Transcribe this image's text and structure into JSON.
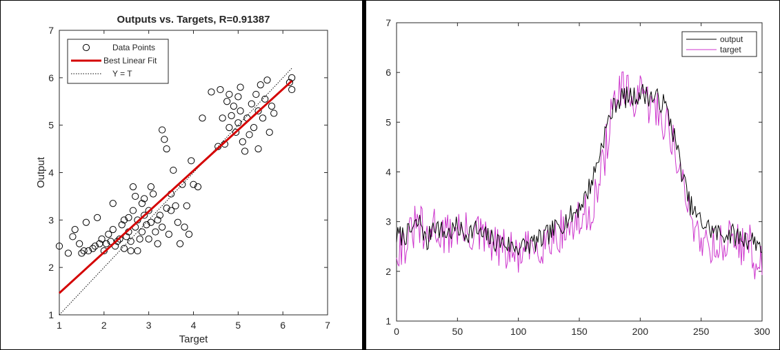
{
  "chart_data": [
    {
      "type": "scatter",
      "title": "Outputs vs. Targets, R=0.91387",
      "xlabel": "Target",
      "ylabel": "Output",
      "xlim": [
        1,
        7
      ],
      "ylim": [
        1,
        7
      ],
      "xticks": [
        "1",
        "2",
        "3",
        "4",
        "5",
        "6",
        "7"
      ],
      "yticks": [
        "1",
        "2",
        "3",
        "4",
        "5",
        "6",
        "7"
      ],
      "grid": false,
      "legend": {
        "placement": "top-left",
        "entries": [
          "Data Points",
          "Best Linear Fit",
          "Y = T"
        ]
      },
      "fit_line": {
        "slope": 0.86,
        "intercept": 0.6,
        "x_range": [
          1,
          6.2
        ]
      },
      "identity_line": {
        "x_range": [
          1,
          6.2
        ]
      },
      "points": [
        [
          1.0,
          2.45
        ],
        [
          1.2,
          2.3
        ],
        [
          1.3,
          2.65
        ],
        [
          1.35,
          2.8
        ],
        [
          1.45,
          2.5
        ],
        [
          1.5,
          2.3
        ],
        [
          1.55,
          2.35
        ],
        [
          1.6,
          2.95
        ],
        [
          1.65,
          2.35
        ],
        [
          1.75,
          2.4
        ],
        [
          1.8,
          2.45
        ],
        [
          1.85,
          3.05
        ],
        [
          1.9,
          2.5
        ],
        [
          1.95,
          2.6
        ],
        [
          2.0,
          2.35
        ],
        [
          2.05,
          2.5
        ],
        [
          2.1,
          2.7
        ],
        [
          2.15,
          2.55
        ],
        [
          2.2,
          2.8
        ],
        [
          2.2,
          3.35
        ],
        [
          2.25,
          2.45
        ],
        [
          2.3,
          2.55
        ],
        [
          2.35,
          2.6
        ],
        [
          2.4,
          2.9
        ],
        [
          2.45,
          3.0
        ],
        [
          2.45,
          2.4
        ],
        [
          2.5,
          2.65
        ],
        [
          2.55,
          2.75
        ],
        [
          2.55,
          3.05
        ],
        [
          2.6,
          2.35
        ],
        [
          2.6,
          2.55
        ],
        [
          2.65,
          3.2
        ],
        [
          2.65,
          3.7
        ],
        [
          2.7,
          2.85
        ],
        [
          2.7,
          3.5
        ],
        [
          2.75,
          3.0
        ],
        [
          2.75,
          2.35
        ],
        [
          2.8,
          2.6
        ],
        [
          2.85,
          2.75
        ],
        [
          2.85,
          3.35
        ],
        [
          2.9,
          3.45
        ],
        [
          2.9,
          3.1
        ],
        [
          2.95,
          2.9
        ],
        [
          3.0,
          2.6
        ],
        [
          3.0,
          3.2
        ],
        [
          3.05,
          3.7
        ],
        [
          3.05,
          2.95
        ],
        [
          3.1,
          3.55
        ],
        [
          3.15,
          2.75
        ],
        [
          3.2,
          3.0
        ],
        [
          3.2,
          2.5
        ],
        [
          3.25,
          3.1
        ],
        [
          3.3,
          2.85
        ],
        [
          3.3,
          4.9
        ],
        [
          3.35,
          4.7
        ],
        [
          3.4,
          4.5
        ],
        [
          3.4,
          3.25
        ],
        [
          3.45,
          2.7
        ],
        [
          3.5,
          3.55
        ],
        [
          3.5,
          3.2
        ],
        [
          3.55,
          4.05
        ],
        [
          3.6,
          3.3
        ],
        [
          3.65,
          2.95
        ],
        [
          3.7,
          2.5
        ],
        [
          3.75,
          3.75
        ],
        [
          3.8,
          2.85
        ],
        [
          3.85,
          3.3
        ],
        [
          3.9,
          2.7
        ],
        [
          3.95,
          4.25
        ],
        [
          4.0,
          3.75
        ],
        [
          4.1,
          3.7
        ],
        [
          4.2,
          5.15
        ],
        [
          4.4,
          5.7
        ],
        [
          4.55,
          4.55
        ],
        [
          4.6,
          5.75
        ],
        [
          4.65,
          5.15
        ],
        [
          4.7,
          4.6
        ],
        [
          4.75,
          5.5
        ],
        [
          4.8,
          5.65
        ],
        [
          4.8,
          4.95
        ],
        [
          4.85,
          5.2
        ],
        [
          4.9,
          5.4
        ],
        [
          4.95,
          4.85
        ],
        [
          5.0,
          5.6
        ],
        [
          5.0,
          5.05
        ],
        [
          5.05,
          5.8
        ],
        [
          5.05,
          5.3
        ],
        [
          5.1,
          4.65
        ],
        [
          5.15,
          4.45
        ],
        [
          5.2,
          5.15
        ],
        [
          5.25,
          4.8
        ],
        [
          5.3,
          5.45
        ],
        [
          5.35,
          4.95
        ],
        [
          5.4,
          5.65
        ],
        [
          5.45,
          4.5
        ],
        [
          5.45,
          5.3
        ],
        [
          5.5,
          5.85
        ],
        [
          5.55,
          5.15
        ],
        [
          5.6,
          5.55
        ],
        [
          5.65,
          5.95
        ],
        [
          5.7,
          4.85
        ],
        [
          5.75,
          5.4
        ],
        [
          5.8,
          5.25
        ],
        [
          6.15,
          5.9
        ],
        [
          6.2,
          6.0
        ],
        [
          6.2,
          5.75
        ]
      ]
    },
    {
      "type": "line",
      "title": "",
      "xlabel": "",
      "ylabel": "",
      "xlim": [
        0,
        300
      ],
      "ylim": [
        1,
        7
      ],
      "xticks": [
        "0",
        "50",
        "100",
        "150",
        "200",
        "250",
        "300"
      ],
      "yticks": [
        "1",
        "2",
        "3",
        "4",
        "5",
        "6",
        "7"
      ],
      "grid": false,
      "legend": {
        "placement": "top-right",
        "entries": [
          "output",
          "target"
        ]
      },
      "series": [
        {
          "name": "output",
          "color": "#000000",
          "keypoints": [
            [
              0,
              2.7
            ],
            [
              10,
              2.75
            ],
            [
              15,
              2.9
            ],
            [
              20,
              3.0
            ],
            [
              25,
              2.5
            ],
            [
              30,
              3.0
            ],
            [
              35,
              2.85
            ],
            [
              40,
              2.75
            ],
            [
              45,
              2.8
            ],
            [
              50,
              2.9
            ],
            [
              55,
              2.75
            ],
            [
              60,
              2.8
            ],
            [
              65,
              2.85
            ],
            [
              70,
              2.7
            ],
            [
              75,
              2.7
            ],
            [
              80,
              2.6
            ],
            [
              85,
              2.6
            ],
            [
              90,
              2.55
            ],
            [
              95,
              2.5
            ],
            [
              100,
              2.5
            ],
            [
              105,
              2.5
            ],
            [
              110,
              2.55
            ],
            [
              115,
              2.6
            ],
            [
              120,
              2.65
            ],
            [
              125,
              2.75
            ],
            [
              130,
              2.85
            ],
            [
              135,
              2.95
            ],
            [
              140,
              3.05
            ],
            [
              145,
              3.15
            ],
            [
              150,
              3.3
            ],
            [
              155,
              3.5
            ],
            [
              160,
              3.8
            ],
            [
              165,
              4.2
            ],
            [
              170,
              4.7
            ],
            [
              175,
              5.1
            ],
            [
              180,
              5.4
            ],
            [
              185,
              5.5
            ],
            [
              190,
              5.5
            ],
            [
              195,
              5.5
            ],
            [
              200,
              5.6
            ],
            [
              205,
              5.55
            ],
            [
              210,
              5.5
            ],
            [
              215,
              5.45
            ],
            [
              220,
              5.35
            ],
            [
              225,
              5.0
            ],
            [
              230,
              4.5
            ],
            [
              235,
              3.9
            ],
            [
              240,
              3.4
            ],
            [
              245,
              3.15
            ],
            [
              250,
              3.0
            ],
            [
              255,
              2.9
            ],
            [
              260,
              2.8
            ],
            [
              265,
              2.75
            ],
            [
              270,
              2.75
            ],
            [
              275,
              2.75
            ],
            [
              280,
              2.7
            ],
            [
              285,
              2.65
            ],
            [
              290,
              2.65
            ],
            [
              295,
              2.6
            ],
            [
              300,
              2.5
            ]
          ]
        },
        {
          "name": "target",
          "color": "#cc33cc",
          "keypoints": [
            [
              0,
              2.5
            ],
            [
              10,
              2.6
            ],
            [
              15,
              2.9
            ],
            [
              20,
              2.9
            ],
            [
              25,
              2.5
            ],
            [
              30,
              3.0
            ],
            [
              35,
              2.8
            ],
            [
              40,
              2.7
            ],
            [
              45,
              2.8
            ],
            [
              50,
              2.9
            ],
            [
              55,
              2.75
            ],
            [
              60,
              2.75
            ],
            [
              65,
              2.8
            ],
            [
              70,
              2.65
            ],
            [
              75,
              2.6
            ],
            [
              80,
              2.5
            ],
            [
              85,
              2.45
            ],
            [
              90,
              2.4
            ],
            [
              95,
              2.35
            ],
            [
              100,
              2.3
            ],
            [
              105,
              2.35
            ],
            [
              110,
              2.45
            ],
            [
              115,
              2.55
            ],
            [
              120,
              2.6
            ],
            [
              125,
              2.65
            ],
            [
              130,
              2.75
            ],
            [
              135,
              2.8
            ],
            [
              140,
              2.85
            ],
            [
              145,
              2.9
            ],
            [
              150,
              3.0
            ],
            [
              155,
              3.1
            ],
            [
              160,
              3.3
            ],
            [
              165,
              3.6
            ],
            [
              170,
              4.2
            ],
            [
              175,
              5.0
            ],
            [
              180,
              5.5
            ],
            [
              185,
              5.6
            ],
            [
              190,
              5.5
            ],
            [
              195,
              5.45
            ],
            [
              200,
              5.5
            ],
            [
              205,
              5.4
            ],
            [
              210,
              5.3
            ],
            [
              215,
              5.2
            ],
            [
              220,
              5.05
            ],
            [
              225,
              4.8
            ],
            [
              230,
              4.3
            ],
            [
              235,
              3.7
            ],
            [
              240,
              3.2
            ],
            [
              245,
              2.9
            ],
            [
              250,
              2.7
            ],
            [
              255,
              2.6
            ],
            [
              260,
              2.55
            ],
            [
              265,
              2.5
            ],
            [
              270,
              2.6
            ],
            [
              275,
              2.65
            ],
            [
              280,
              2.6
            ],
            [
              285,
              2.55
            ],
            [
              290,
              2.5
            ],
            [
              295,
              2.2
            ],
            [
              300,
              2.1
            ]
          ]
        }
      ]
    }
  ]
}
